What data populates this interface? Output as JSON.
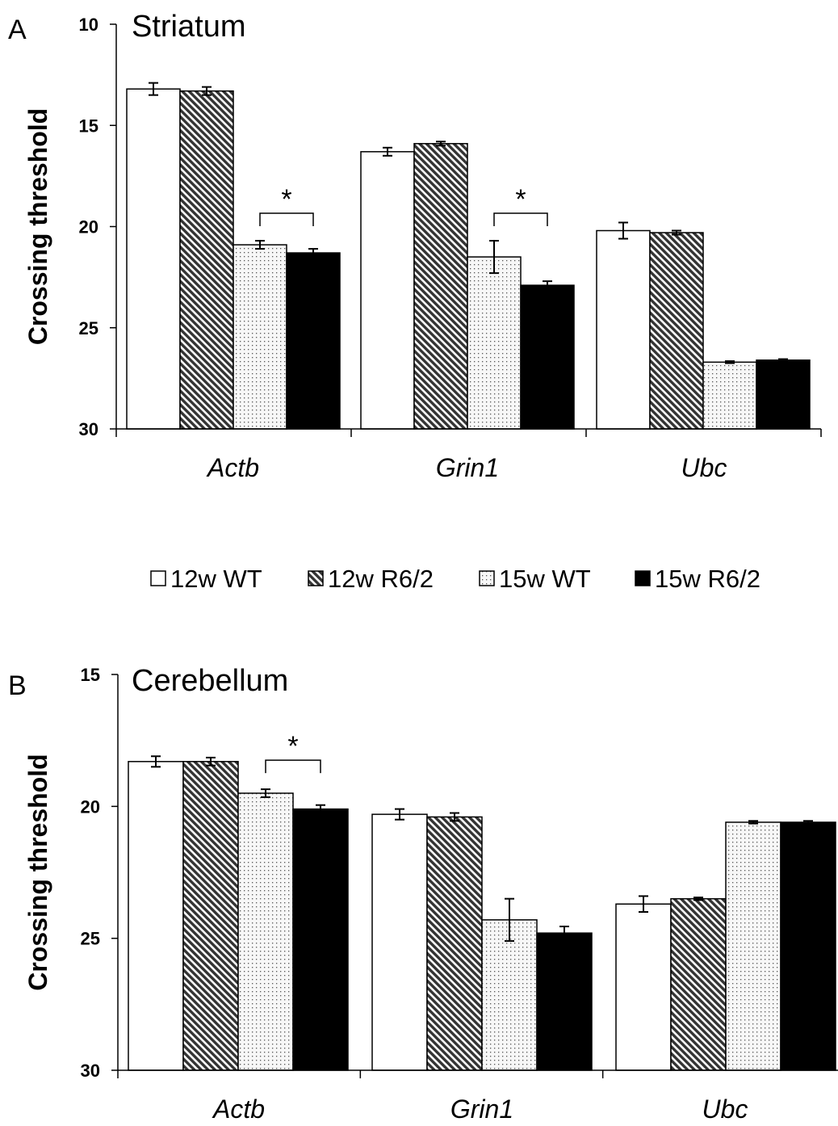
{
  "legend": {
    "entries": [
      {
        "label": "12w WT",
        "pattern": "white"
      },
      {
        "label": "12w R6/2",
        "pattern": "hatch"
      },
      {
        "label": "15w WT",
        "pattern": "dots"
      },
      {
        "label": "15w R6/2",
        "pattern": "black"
      }
    ]
  },
  "colors": {
    "black": "#000000",
    "white": "#ffffff",
    "hatch_fill": "#ffffff",
    "dots_fill": "#f7f7f7"
  },
  "chart_data": [
    {
      "type": "bar",
      "panel_label": "A",
      "title": "Striatum",
      "ylabel": "Crossing threshold",
      "xlabel": "",
      "ylim": [
        10,
        30
      ],
      "y_inverted": true,
      "yticks": [
        10,
        15,
        20,
        25,
        30
      ],
      "grid": false,
      "categories": [
        "Actb",
        "Grin1",
        "Ubc"
      ],
      "series": [
        {
          "name": "12w WT",
          "values": [
            13.2,
            16.3,
            20.2
          ],
          "errors": [
            0.3,
            0.2,
            0.4
          ]
        },
        {
          "name": "12w R6/2",
          "values": [
            13.3,
            15.9,
            20.3
          ],
          "errors": [
            0.2,
            0.1,
            0.1
          ]
        },
        {
          "name": "15w WT",
          "values": [
            20.9,
            21.5,
            26.7
          ],
          "errors": [
            0.2,
            0.8,
            0.05
          ]
        },
        {
          "name": "15w R6/2",
          "values": [
            21.3,
            22.9,
            26.6
          ],
          "errors": [
            0.2,
            0.2,
            0.05
          ]
        }
      ],
      "significance": [
        {
          "category": "Actb",
          "between": [
            "15w WT",
            "15w R6/2"
          ],
          "label": "*"
        },
        {
          "category": "Grin1",
          "between": [
            "15w WT",
            "15w R6/2"
          ],
          "label": "*"
        }
      ]
    },
    {
      "type": "bar",
      "panel_label": "B",
      "title": "Cerebellum",
      "ylabel": "Crossing threshold",
      "xlabel": "",
      "ylim": [
        15,
        30
      ],
      "y_inverted": true,
      "yticks": [
        15,
        20,
        25,
        30
      ],
      "grid": false,
      "categories": [
        "Actb",
        "Grin1",
        "Ubc"
      ],
      "series": [
        {
          "name": "12w WT",
          "values": [
            18.3,
            20.3,
            23.7
          ],
          "errors": [
            0.2,
            0.2,
            0.3
          ]
        },
        {
          "name": "12w R6/2",
          "values": [
            18.3,
            20.4,
            23.5
          ],
          "errors": [
            0.15,
            0.15,
            0.05
          ]
        },
        {
          "name": "15w WT",
          "values": [
            19.5,
            24.3,
            20.6
          ],
          "errors": [
            0.15,
            0.8,
            0.05
          ]
        },
        {
          "name": "15w R6/2",
          "values": [
            20.1,
            24.8,
            20.6
          ],
          "errors": [
            0.15,
            0.25,
            0.05
          ]
        }
      ],
      "significance": [
        {
          "category": "Actb",
          "between": [
            "15w WT",
            "15w R6/2"
          ],
          "label": "*"
        }
      ]
    }
  ]
}
